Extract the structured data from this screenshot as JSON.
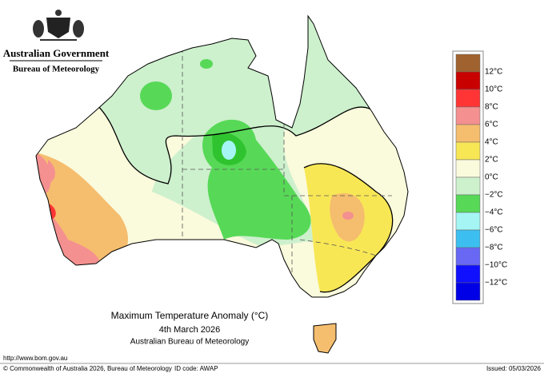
{
  "header": {
    "government": "Australian Government",
    "agency": "Bureau of Meteorology"
  },
  "map": {
    "title": "Maximum Temperature Anomaly (°C)",
    "date": "4th March 2026",
    "source": "Australian Bureau of Meteorology"
  },
  "legend": {
    "labels": [
      "12°C",
      "10°C",
      "8°C",
      "6°C",
      "4°C",
      "2°C",
      "0°C",
      "−2°C",
      "−4°C",
      "−6°C",
      "−8°C",
      "−10°C",
      "−12°C"
    ],
    "colors": [
      "#a0622e",
      "#c80000",
      "#ff3535",
      "#f59090",
      "#f5bd6e",
      "#f8e755",
      "#fafadc",
      "#cdf0cd",
      "#57d957",
      "#a5f5f5",
      "#3cbff0",
      "#6868f5",
      "#1010ff",
      "#0000e6"
    ]
  },
  "footer": {
    "url": "http://www.bom.gov.au",
    "copyright": "© Commonwealth of Australia 2026, Bureau of Meteorology",
    "id_code": "ID code: AWAP",
    "issued": "Issued: 05/03/2026"
  }
}
